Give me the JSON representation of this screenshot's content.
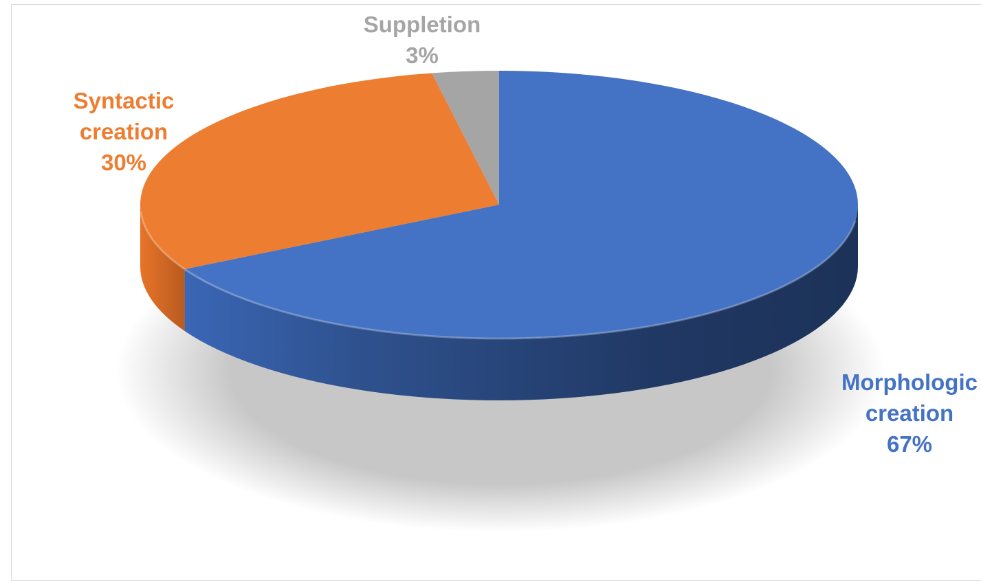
{
  "chart_data": {
    "type": "pie",
    "style": "3d",
    "title": "",
    "categories": [
      "Morphologic creation",
      "Syntactic creation",
      "Suppletion"
    ],
    "values": [
      67,
      30,
      3
    ],
    "colors": [
      "#4472C4",
      "#ED7D31",
      "#A5A5A5"
    ],
    "labels": [
      {
        "lines": [
          "Morphologic",
          "creation",
          "67%"
        ],
        "color": "#4472C4"
      },
      {
        "lines": [
          "Syntactic",
          "creation",
          "30%"
        ],
        "color": "#ED7D31"
      },
      {
        "lines": [
          "Suppletion",
          "3%"
        ],
        "color": "#A5A5A5"
      }
    ],
    "legend": "none"
  }
}
